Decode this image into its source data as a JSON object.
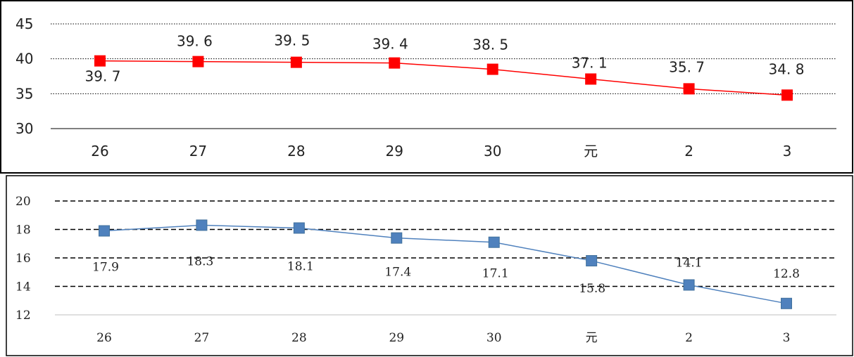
{
  "chart_data": [
    {
      "type": "line",
      "categories": [
        "26",
        "27",
        "28",
        "29",
        "30",
        "元",
        "2",
        "3"
      ],
      "series": [
        {
          "values": [
            39.7,
            39.6,
            39.5,
            39.4,
            38.5,
            37.1,
            35.7,
            34.8
          ]
        }
      ],
      "value_labels": [
        "39.7",
        "39.6",
        "39.5",
        "39.4",
        "38.5",
        "37.1",
        "35.7",
        "34.8"
      ],
      "ylim": [
        30,
        45
      ],
      "yticks": [
        "30",
        "35",
        "40",
        "45"
      ],
      "grid": "dotted horizontal",
      "colors": {
        "line": "#ff0000",
        "marker": "#ff0000"
      },
      "marker": "square"
    },
    {
      "type": "line",
      "categories": [
        "26",
        "27",
        "28",
        "29",
        "30",
        "元",
        "2",
        "3"
      ],
      "series": [
        {
          "values": [
            17.9,
            18.3,
            18.1,
            17.4,
            17.1,
            15.8,
            14.1,
            12.8
          ]
        }
      ],
      "value_labels": [
        "17.9",
        "18.3",
        "18.1",
        "17.4",
        "17.1",
        "15.8",
        "14.1",
        "12.8"
      ],
      "ylim": [
        12,
        20
      ],
      "yticks": [
        "12",
        "14",
        "16",
        "18",
        "20"
      ],
      "grid": "dashed horizontal",
      "colors": {
        "line": "#4f81bd",
        "marker": "#4f81bd"
      },
      "marker": "square"
    }
  ]
}
